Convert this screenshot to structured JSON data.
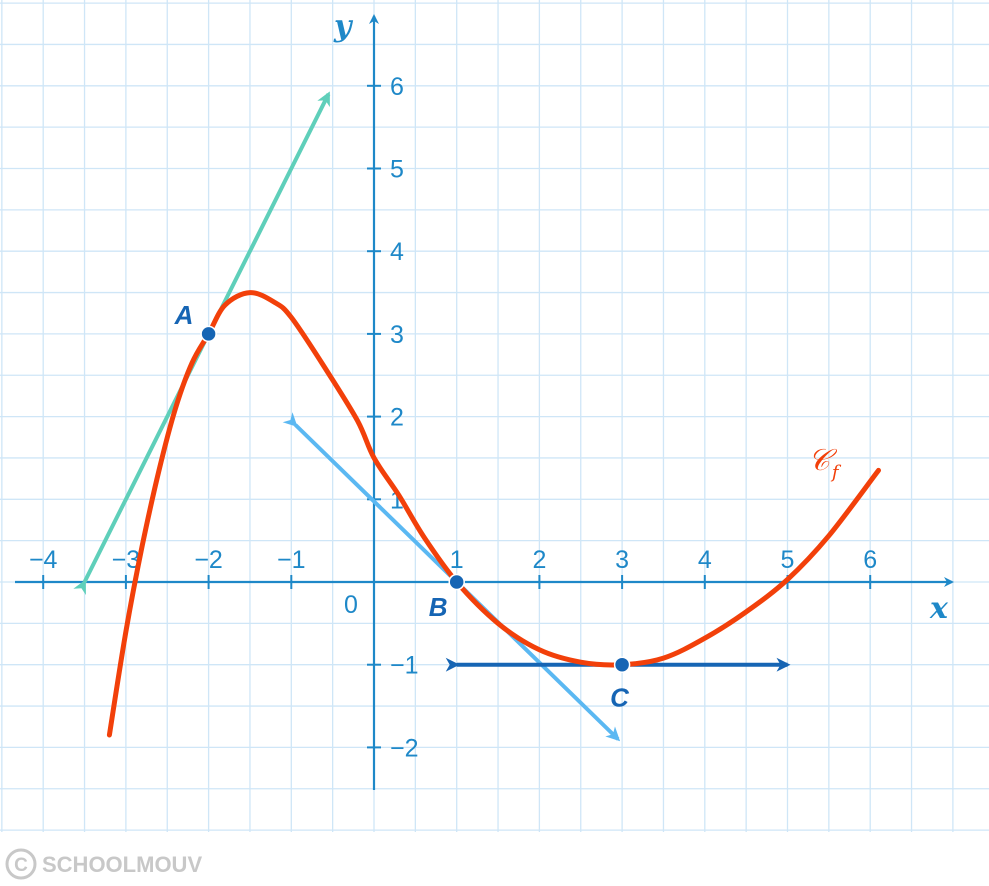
{
  "chart_data": {
    "type": "line",
    "xlabel": "x",
    "ylabel": "y",
    "xlim": [
      -4.3,
      7
    ],
    "ylim": [
      -2.5,
      6.8
    ],
    "grid": true,
    "x_ticks": [
      "−4",
      "−3",
      "−2",
      "−1",
      "1",
      "2",
      "3",
      "4",
      "5",
      "6"
    ],
    "x_tick_values": [
      -4,
      -3,
      -2,
      -1,
      1,
      2,
      3,
      4,
      5,
      6
    ],
    "y_ticks": [
      "6",
      "5",
      "4",
      "3",
      "2",
      "1",
      "−1",
      "−2"
    ],
    "y_tick_values": [
      6,
      5,
      4,
      3,
      2,
      1,
      -1,
      -2
    ],
    "origin_label": "0",
    "series": [
      {
        "name": "𝒞f",
        "name_main": "𝒞",
        "name_sub": "f",
        "color": "#f2400a",
        "x": [
          -3.2,
          -3.0,
          -2.8,
          -2.6,
          -2.4,
          -2.2,
          -2.0,
          -1.8,
          -1.5,
          -1.2,
          -1.0,
          -0.6,
          -0.2,
          0.0,
          0.3,
          0.6,
          1.0,
          1.5,
          2.0,
          2.5,
          3.0,
          3.5,
          4.0,
          4.5,
          5.0,
          5.5,
          6.1
        ],
        "y": [
          -1.85,
          -0.6,
          0.45,
          1.35,
          2.1,
          2.65,
          3.0,
          3.35,
          3.5,
          3.38,
          3.2,
          2.6,
          1.95,
          1.5,
          1.05,
          0.55,
          0.0,
          -0.5,
          -0.82,
          -0.97,
          -1.0,
          -0.92,
          -0.68,
          -0.36,
          0.03,
          0.56,
          1.35
        ]
      }
    ],
    "points": [
      {
        "label": "A",
        "x": -2,
        "y": 3
      },
      {
        "label": "B",
        "x": 1,
        "y": 0
      },
      {
        "label": "C",
        "x": 3,
        "y": -1
      }
    ],
    "tangents": [
      {
        "name": "tangent at A",
        "color": "#5fcfba",
        "from": [
          -3.5,
          0.0
        ],
        "to": [
          -0.55,
          5.9
        ]
      },
      {
        "name": "tangent at B",
        "color": "#5bb8f2",
        "from": [
          -0.95,
          1.9
        ],
        "to": [
          2.95,
          -1.9
        ]
      },
      {
        "name": "tangent at C",
        "color": "#1665b4",
        "from": [
          1.0,
          -1.0
        ],
        "to": [
          5.0,
          -1.0
        ]
      }
    ]
  },
  "watermark": {
    "text": "SCHOOLMOUV",
    "symbol": "©"
  }
}
